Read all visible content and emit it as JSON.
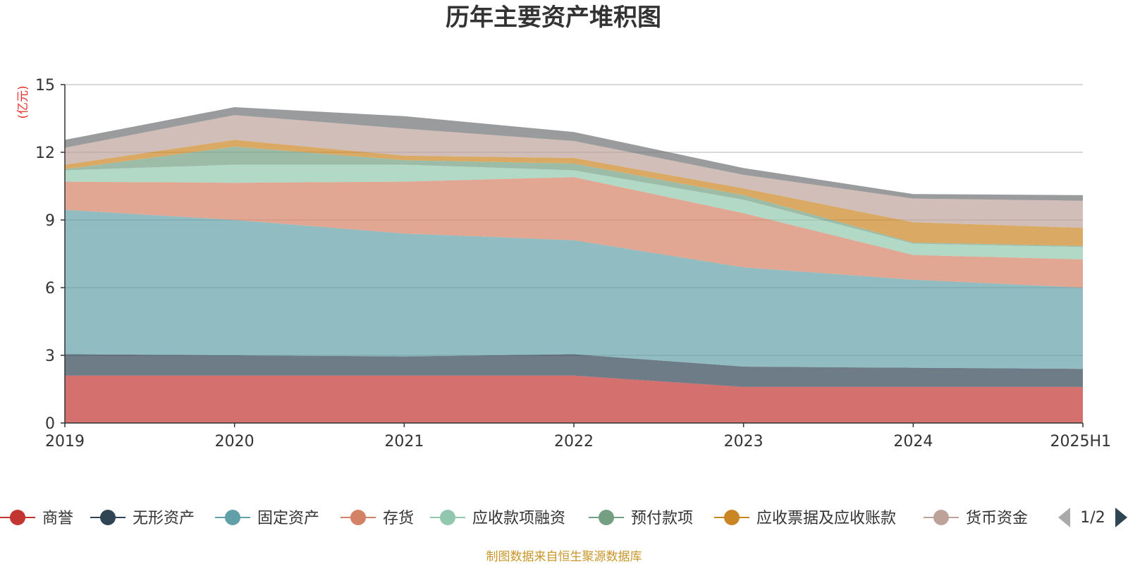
{
  "chart_data": {
    "type": "area",
    "stacked": true,
    "title": "历年主要资产堆积图",
    "unit_label": "(亿元)",
    "categories": [
      "2019",
      "2020",
      "2021",
      "2022",
      "2023",
      "2024",
      "2025H1"
    ],
    "ylim": [
      0,
      15
    ],
    "yticks": [
      "0",
      "3",
      "6",
      "9",
      "12",
      "15"
    ],
    "grid": true,
    "legend_position": "bottom",
    "series": [
      {
        "name": "商誉",
        "color": "#c23531",
        "values": [
          2.1,
          2.1,
          2.1,
          2.1,
          1.6,
          1.6,
          1.6
        ]
      },
      {
        "name": "无形资产",
        "color": "#2f4554",
        "values": [
          0.95,
          0.9,
          0.85,
          0.95,
          0.9,
          0.85,
          0.8
        ]
      },
      {
        "name": "固定资产",
        "color": "#61a0a8",
        "values": [
          6.4,
          6.0,
          5.45,
          5.05,
          4.4,
          3.9,
          3.6
        ]
      },
      {
        "name": "存货",
        "color": "#d48265",
        "values": [
          1.25,
          1.65,
          2.3,
          2.8,
          2.4,
          1.1,
          1.25
        ]
      },
      {
        "name": "应收款项融资",
        "color": "#91c7ae",
        "values": [
          0.5,
          0.8,
          0.75,
          0.3,
          0.6,
          0.5,
          0.55
        ]
      },
      {
        "name": "预付款项",
        "color": "#749f83",
        "values": [
          0.05,
          0.8,
          0.2,
          0.3,
          0.2,
          0.05,
          0.05
        ]
      },
      {
        "name": "应收票据及应收账款",
        "color": "#ca8622",
        "values": [
          0.2,
          0.3,
          0.2,
          0.25,
          0.3,
          0.9,
          0.8
        ]
      },
      {
        "name": "货币资金",
        "color": "#bda29a",
        "values": [
          0.75,
          1.1,
          1.2,
          0.75,
          0.6,
          1.05,
          1.2
        ]
      },
      {
        "name": "",
        "color": "#6e7074",
        "values": [
          0.35,
          0.35,
          0.55,
          0.4,
          0.3,
          0.2,
          0.25
        ]
      }
    ],
    "legend_page": "1/2",
    "source": "制图数据来自恒生聚源数据库"
  }
}
